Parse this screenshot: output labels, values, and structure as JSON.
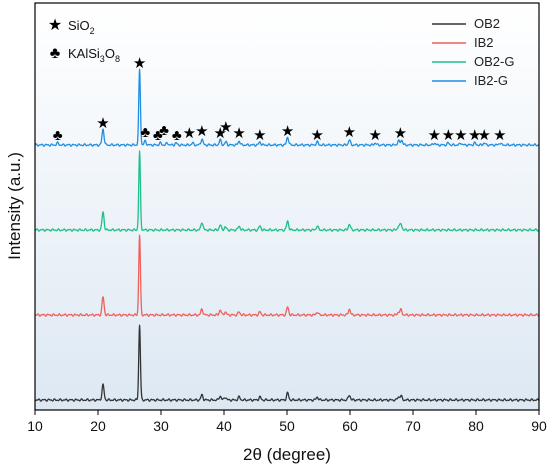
{
  "chart_data": {
    "type": "line",
    "title": "",
    "xlabel": "2θ (degree)",
    "ylabel": "Intensity (a.u.)",
    "xlim": [
      10,
      90
    ],
    "xticks": [
      10,
      20,
      30,
      40,
      50,
      60,
      70,
      80,
      90
    ],
    "y_ticks_shown": false,
    "legend_position": "top-right",
    "background_gradient": [
      "#ffffff",
      "#dde8f3"
    ],
    "series": [
      {
        "name": "OB2",
        "color": "#333333",
        "baseline": 0,
        "peaks": [
          [
            20.8,
            15
          ],
          [
            26.6,
            75
          ],
          [
            36.5,
            5
          ],
          [
            39.4,
            4
          ],
          [
            40.2,
            3
          ],
          [
            42.4,
            3
          ],
          [
            45.7,
            3
          ],
          [
            50.1,
            7
          ],
          [
            54.8,
            3
          ],
          [
            59.9,
            5
          ],
          [
            67.7,
            3
          ],
          [
            68.1,
            4
          ]
        ]
      },
      {
        "name": "IB2",
        "color": "#f0605a",
        "baseline": 85,
        "peaks": [
          [
            20.8,
            18
          ],
          [
            26.6,
            80
          ],
          [
            36.5,
            6
          ],
          [
            39.4,
            5
          ],
          [
            40.2,
            3
          ],
          [
            42.4,
            3
          ],
          [
            45.7,
            3
          ],
          [
            50.1,
            8
          ],
          [
            54.8,
            3
          ],
          [
            59.9,
            6
          ],
          [
            67.7,
            3
          ],
          [
            68.1,
            5
          ]
        ]
      },
      {
        "name": "OB2-G",
        "color": "#1dbf8a",
        "baseline": 170,
        "peaks": [
          [
            20.8,
            18
          ],
          [
            26.6,
            78
          ],
          [
            36.5,
            8
          ],
          [
            39.4,
            5
          ],
          [
            40.2,
            3
          ],
          [
            42.4,
            4
          ],
          [
            45.7,
            4
          ],
          [
            50.1,
            9
          ],
          [
            54.8,
            4
          ],
          [
            59.9,
            6
          ],
          [
            67.7,
            4
          ],
          [
            68.1,
            6
          ]
        ]
      },
      {
        "name": "IB2-G",
        "color": "#1e8fe0",
        "baseline": 255,
        "peaks": [
          [
            13.6,
            2
          ],
          [
            20.8,
            16
          ],
          [
            26.6,
            75
          ],
          [
            27.5,
            4
          ],
          [
            29.9,
            2
          ],
          [
            31.0,
            2
          ],
          [
            32.4,
            2
          ],
          [
            35.0,
            2
          ],
          [
            36.5,
            6
          ],
          [
            39.4,
            5
          ],
          [
            40.3,
            3
          ],
          [
            42.4,
            4
          ],
          [
            45.7,
            3
          ],
          [
            50.1,
            8
          ],
          [
            54.8,
            3
          ],
          [
            59.9,
            5
          ],
          [
            64.0,
            2
          ],
          [
            67.7,
            4
          ],
          [
            68.2,
            5
          ],
          [
            73.4,
            2
          ],
          [
            75.6,
            2
          ],
          [
            77.6,
            2
          ],
          [
            79.8,
            2
          ],
          [
            81.3,
            2
          ],
          [
            83.8,
            2
          ]
        ]
      }
    ],
    "marker_legend": [
      {
        "symbol": "★",
        "phase": "SiO",
        "subscript": "2"
      },
      {
        "symbol": "♣",
        "phase": "KAlSi",
        "sub1": "3",
        "mid": "O",
        "sub2": "8"
      }
    ],
    "phase_markers": [
      {
        "x": 13.6,
        "symbol": "♣",
        "lift": 0
      },
      {
        "x": 20.8,
        "symbol": "★",
        "lift": 12
      },
      {
        "x": 26.6,
        "symbol": "★",
        "lift": 72
      },
      {
        "x": 27.5,
        "symbol": "♣",
        "lift": 3
      },
      {
        "x": 29.5,
        "symbol": "♣",
        "lift": 0
      },
      {
        "x": 30.5,
        "symbol": "♣",
        "lift": 5
      },
      {
        "x": 32.5,
        "symbol": "♣",
        "lift": 0
      },
      {
        "x": 34.5,
        "symbol": "★",
        "lift": 2
      },
      {
        "x": 36.5,
        "symbol": "★",
        "lift": 4
      },
      {
        "x": 39.4,
        "symbol": "★",
        "lift": 2
      },
      {
        "x": 40.3,
        "symbol": "★",
        "lift": 8
      },
      {
        "x": 42.4,
        "symbol": "★",
        "lift": 2
      },
      {
        "x": 45.7,
        "symbol": "★",
        "lift": 0
      },
      {
        "x": 50.1,
        "symbol": "★",
        "lift": 4
      },
      {
        "x": 54.8,
        "symbol": "★",
        "lift": 0
      },
      {
        "x": 59.9,
        "symbol": "★",
        "lift": 3
      },
      {
        "x": 64.0,
        "symbol": "★",
        "lift": 0
      },
      {
        "x": 68.0,
        "symbol": "★",
        "lift": 2
      },
      {
        "x": 73.4,
        "symbol": "★",
        "lift": 0
      },
      {
        "x": 75.6,
        "symbol": "★",
        "lift": 0
      },
      {
        "x": 77.6,
        "symbol": "★",
        "lift": 0
      },
      {
        "x": 79.8,
        "symbol": "★",
        "lift": 0
      },
      {
        "x": 81.3,
        "symbol": "★",
        "lift": 0
      },
      {
        "x": 83.8,
        "symbol": "★",
        "lift": 0
      }
    ]
  }
}
